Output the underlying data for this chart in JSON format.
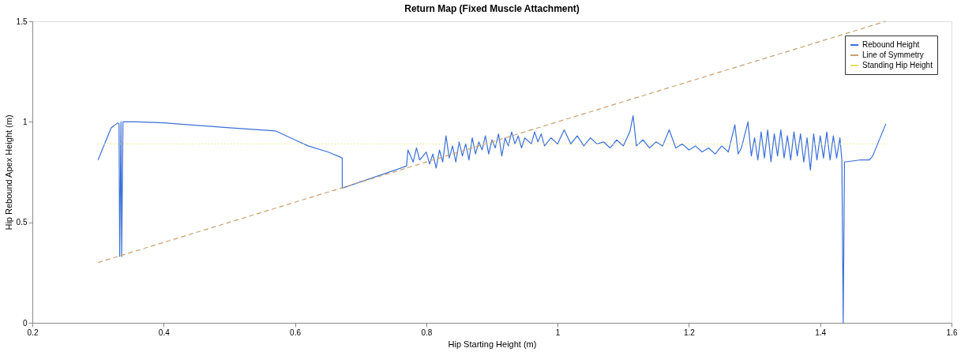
{
  "chart_data": {
    "type": "line",
    "title": "Return Map (Fixed Muscle Attachment)",
    "xlabel": "Hip Starting Height (m)",
    "ylabel": "Hip Rebound Apex Height (m)",
    "xlim": [
      0.2,
      1.6
    ],
    "ylim": [
      0,
      1.5
    ],
    "xticks": [
      0.2,
      0.4,
      0.6,
      0.8,
      1,
      1.2,
      1.4,
      1.6
    ],
    "yticks": [
      0,
      0.5,
      1,
      1.5
    ],
    "grid": false,
    "legend": "top right",
    "marker": "none",
    "series": [
      {
        "name": "Rebound Height",
        "color": "#3a6fd8",
        "line_style": "solid",
        "x": [
          0.3,
          0.32,
          0.33,
          0.332,
          0.333,
          0.335,
          0.336,
          0.338,
          0.36,
          0.4,
          0.5,
          0.57,
          0.6,
          0.62,
          0.65,
          0.672,
          0.672,
          0.77,
          0.772,
          0.78,
          0.785,
          0.79,
          0.8,
          0.805,
          0.81,
          0.815,
          0.82,
          0.825,
          0.83,
          0.835,
          0.84,
          0.845,
          0.85,
          0.855,
          0.86,
          0.865,
          0.87,
          0.875,
          0.88,
          0.885,
          0.89,
          0.895,
          0.9,
          0.905,
          0.91,
          0.915,
          0.92,
          0.925,
          0.93,
          0.935,
          0.94,
          0.945,
          0.95,
          0.96,
          0.965,
          0.97,
          0.975,
          0.98,
          0.99,
          1.0,
          1.01,
          1.02,
          1.03,
          1.04,
          1.05,
          1.06,
          1.07,
          1.08,
          1.09,
          1.1,
          1.11,
          1.115,
          1.12,
          1.13,
          1.14,
          1.15,
          1.16,
          1.17,
          1.18,
          1.19,
          1.2,
          1.21,
          1.22,
          1.23,
          1.24,
          1.25,
          1.26,
          1.27,
          1.275,
          1.28,
          1.29,
          1.295,
          1.3,
          1.305,
          1.31,
          1.315,
          1.32,
          1.325,
          1.33,
          1.335,
          1.34,
          1.345,
          1.35,
          1.355,
          1.36,
          1.365,
          1.37,
          1.375,
          1.38,
          1.385,
          1.39,
          1.395,
          1.4,
          1.405,
          1.41,
          1.415,
          1.42,
          1.425,
          1.43,
          1.433,
          1.435,
          1.437,
          1.46,
          1.475,
          1.48,
          1.5
        ],
        "values": [
          0.81,
          0.97,
          0.995,
          0.99,
          0.33,
          1.0,
          0.33,
          1.0,
          1.0,
          0.995,
          0.97,
          0.955,
          0.91,
          0.88,
          0.85,
          0.82,
          0.67,
          0.78,
          0.86,
          0.8,
          0.87,
          0.81,
          0.85,
          0.79,
          0.84,
          0.77,
          0.86,
          0.8,
          0.93,
          0.82,
          0.88,
          0.8,
          0.9,
          0.83,
          0.89,
          0.81,
          0.92,
          0.84,
          0.9,
          0.86,
          0.93,
          0.84,
          0.91,
          0.87,
          0.94,
          0.83,
          0.92,
          0.88,
          0.95,
          0.89,
          0.93,
          0.87,
          0.92,
          0.89,
          0.95,
          0.9,
          0.94,
          0.88,
          0.92,
          0.89,
          0.96,
          0.89,
          0.93,
          0.88,
          0.92,
          0.89,
          0.9,
          0.87,
          0.91,
          0.88,
          0.95,
          1.03,
          0.88,
          0.91,
          0.87,
          0.9,
          0.88,
          0.96,
          0.87,
          0.89,
          0.86,
          0.88,
          0.85,
          0.87,
          0.84,
          0.88,
          0.85,
          0.985,
          0.84,
          0.87,
          1.0,
          0.83,
          0.92,
          0.81,
          0.95,
          0.82,
          0.96,
          0.8,
          0.94,
          0.83,
          0.96,
          0.82,
          0.93,
          0.81,
          0.95,
          0.83,
          0.94,
          0.8,
          0.92,
          0.76,
          0.94,
          0.81,
          0.93,
          0.82,
          0.95,
          0.81,
          0.93,
          0.82,
          0.92,
          0.81,
          0,
          0.8,
          0.81,
          0.81,
          0.83,
          0.99
        ]
      },
      {
        "name": "Line of Symmetry",
        "color": "#c8a070",
        "line_style": "dashed",
        "x": [
          0.3,
          1.5
        ],
        "values": [
          0.3,
          1.5
        ]
      },
      {
        "name": "Standing Hip Height",
        "color": "#e8e060",
        "line_style": "dotted",
        "x": [
          0.3,
          1.5
        ],
        "values": [
          0.89,
          0.89
        ]
      }
    ]
  }
}
